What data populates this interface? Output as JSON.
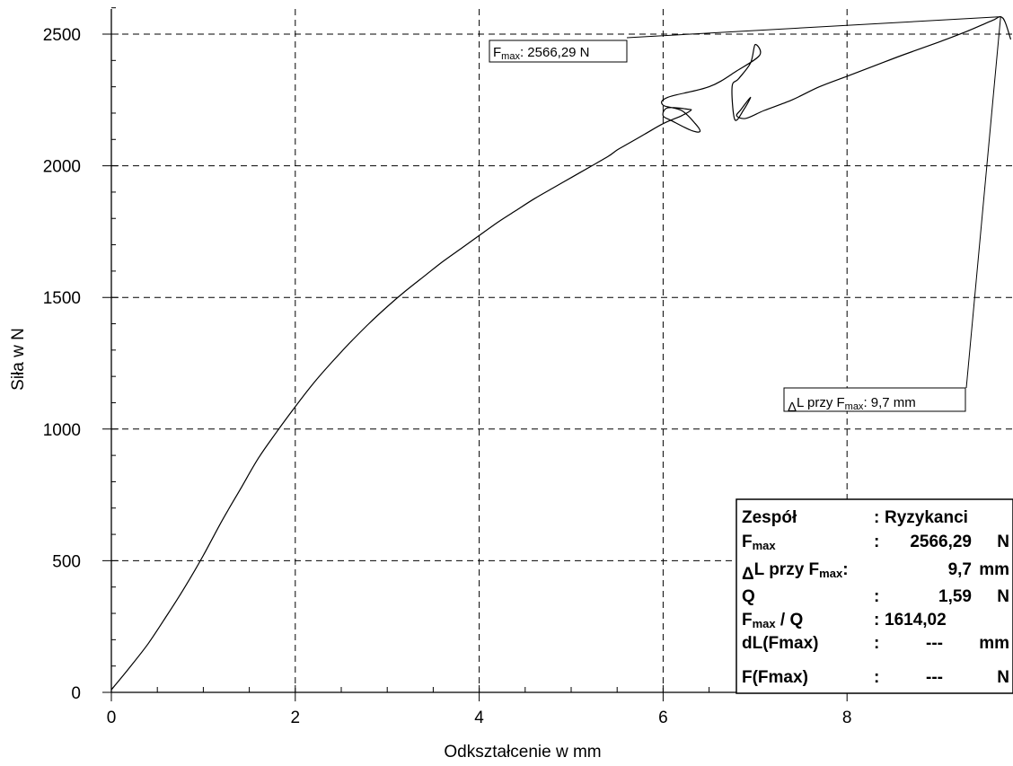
{
  "chart_data": {
    "type": "line",
    "title": "",
    "xlabel": "Odkształcenie w mm",
    "ylabel": "Siła w N",
    "xlim": [
      0,
      9.8
    ],
    "ylim": [
      0,
      2650
    ],
    "xticks": [
      0,
      2,
      4,
      6,
      8
    ],
    "yticks": [
      0,
      500,
      1000,
      1500,
      2000,
      2500
    ],
    "x_tick_labels": [
      "0",
      "2",
      "4",
      "6",
      "8"
    ],
    "y_tick_labels": [
      "0",
      "500",
      "1000",
      "1500",
      "2000",
      "2500"
    ],
    "grid": true,
    "legend": "none",
    "series": [
      {
        "x": [
          0,
          0.2,
          0.4,
          0.6,
          0.8,
          1.0,
          1.2,
          1.4,
          1.6,
          1.8,
          2.0,
          2.2,
          2.4,
          2.6,
          2.8,
          3.0,
          3.2,
          3.4,
          3.6,
          3.8,
          4.0,
          4.2,
          4.4,
          4.6,
          4.8,
          5.0,
          5.2,
          5.4,
          5.5,
          5.6,
          5.8,
          6.0,
          6.2,
          6.3,
          6.27,
          6.05,
          6.0,
          6.1,
          6.3,
          6.4,
          6.35,
          6.2,
          6.0,
          6.05,
          6.5,
          6.8,
          7.05,
          7.0,
          6.95,
          6.82,
          6.75,
          6.78,
          6.88,
          6.95,
          6.85,
          6.8,
          6.9,
          7.1,
          7.4,
          7.7,
          8.0,
          8.3,
          8.6,
          9.0,
          9.3,
          9.5,
          9.6,
          9.67,
          9.72,
          9.78
        ],
        "y": [
          10,
          95,
          185,
          290,
          400,
          520,
          650,
          770,
          890,
          990,
          1085,
          1175,
          1255,
          1330,
          1400,
          1465,
          1525,
          1580,
          1635,
          1685,
          1735,
          1785,
          1830,
          1875,
          1915,
          1955,
          1995,
          2035,
          2060,
          2080,
          2120,
          2160,
          2190,
          2210,
          2215,
          2220,
          2190,
          2170,
          2135,
          2130,
          2160,
          2210,
          2230,
          2260,
          2300,
          2360,
          2420,
          2460,
          2390,
          2330,
          2300,
          2175,
          2215,
          2260,
          2215,
          2190,
          2180,
          2210,
          2250,
          2300,
          2340,
          2380,
          2420,
          2470,
          2510,
          2540,
          2555,
          2566,
          2545,
          2480
        ]
      }
    ],
    "annotations": [
      {
        "main": "F",
        "sub": "max",
        "suffix": ": 2566,29 N"
      },
      {
        "prefix": "L przy F",
        "sub": "max",
        "suffix": ": 9,7 mm",
        "symbol": "Δ"
      }
    ],
    "info_table": [
      {
        "label": "Zespół",
        "colon": ":",
        "value": "Ryzykanci",
        "unit": ""
      },
      {
        "label": "F",
        "label_sub": "max",
        "colon": ":",
        "value": "2566,29",
        "unit": "N"
      },
      {
        "label_symbol": "Δ",
        "label": "L przy F",
        "label_sub": "max",
        "colon": ":",
        "value": "9,7",
        "unit": "mm"
      },
      {
        "label": "Q",
        "colon": ":",
        "value": "1,59",
        "unit": "N"
      },
      {
        "label": "F",
        "label_sub": "max",
        "label_suffix": " / Q",
        "colon": ":",
        "value": "1614,02",
        "unit": ""
      },
      {
        "label": "dL(Fmax)",
        "colon": ":",
        "value": "---",
        "unit": "mm"
      },
      {
        "label": "F(Fmax)",
        "colon": ":",
        "value": "---",
        "unit": "N"
      }
    ]
  }
}
